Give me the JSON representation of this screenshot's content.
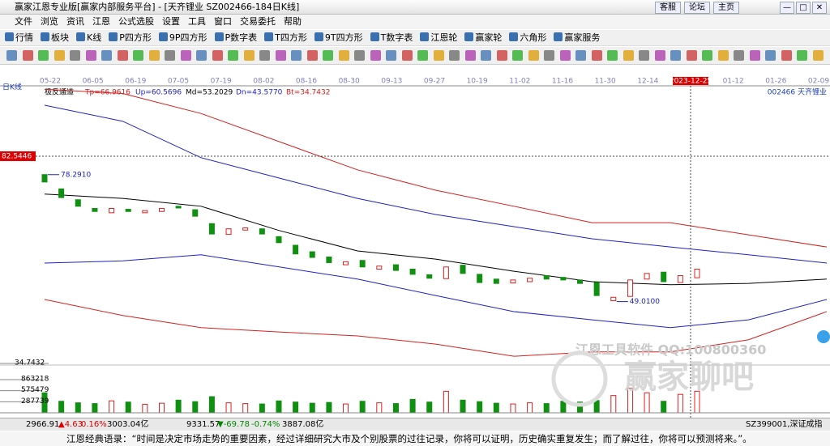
{
  "window": {
    "title": "赢家江恩专业版[赢家内部服务平台] - [天齐锂业  SZ002466-184日K线]",
    "buttons": [
      "客服",
      "论坛",
      "主页"
    ]
  },
  "menu": [
    "文件",
    "浏览",
    "资讯",
    "江恩",
    "公式选股",
    "设置",
    "工具",
    "窗口",
    "交易委托",
    "帮助"
  ],
  "toolbar": [
    "行情",
    "板块",
    "K线",
    "P四方形",
    "9P四方形",
    "P数字表",
    "T四方形",
    "9T四方形",
    "T数字表",
    "江恩轮",
    "赢家轮",
    "六角形",
    "赢家服务"
  ],
  "chart_data": {
    "type": "candlestick",
    "period_label": "日K线",
    "indicator": "极反通道",
    "indicator_params": [
      "Tp=66.9616",
      "Up=60.5696",
      "Md=53.2029",
      "Dn=43.5770",
      "Bt=34.7432"
    ],
    "stock": "002466  天齐锂业",
    "dates": [
      "05-22",
      "06-05",
      "06-19",
      "07-05",
      "07-19",
      "08-02",
      "08-16",
      "08-30",
      "09-13",
      "09-27",
      "10-19",
      "11-02",
      "11-16",
      "11-30",
      "12-14",
      "2023-12-25",
      "01-12",
      "01-26",
      "02-09"
    ],
    "highlight_date": "2023-12-25",
    "ylim": [
      34.7432,
      98.41
    ],
    "open": [
      78.3,
      75,
      72.5,
      70.5,
      69.5,
      70.3,
      69.5,
      69.8,
      71,
      70.2,
      67,
      64.5,
      65.5,
      65.8,
      64,
      62,
      60.5,
      59.3,
      57.5,
      58.5,
      56.5,
      57.5,
      56.5,
      55.2,
      54.3,
      57.4,
      55.3,
      54.2,
      53.3,
      53.6,
      55,
      54.6,
      54,
      53.4,
      49.2,
      50.2,
      54.2,
      55.8,
      53.4,
      54.5
    ],
    "close": [
      76.6,
      73,
      71,
      69.8,
      70.5,
      69.8,
      70,
      70.5,
      70.6,
      68.7,
      64.6,
      65.8,
      66,
      64.6,
      62.6,
      60,
      59.2,
      58,
      58.2,
      57,
      57.2,
      56.2,
      55.3,
      54.4,
      57,
      55.5,
      53.4,
      53.2,
      54,
      54.4,
      54.2,
      54,
      53.2,
      50.4,
      50,
      54,
      55.5,
      53.6,
      55,
      56.5
    ],
    "volume": [
      520000,
      300000,
      260000,
      240000,
      310000,
      280000,
      220000,
      250000,
      330000,
      290000,
      420000,
      260000,
      240000,
      230000,
      310000,
      280000,
      250000,
      270000,
      230000,
      300000,
      260000,
      240000,
      350000,
      280000,
      560000,
      330000,
      290000,
      250000,
      230000,
      260000,
      240000,
      300000,
      280000,
      320000,
      450000,
      640000,
      520000,
      300000,
      480000,
      560000
    ],
    "channels": [
      {
        "color": "#d62020",
        "values": [
          98.0,
          97.0,
          92.4,
          85.9,
          79.4,
          74.7,
          71.0,
          67.2,
          67.2,
          64.4,
          61.6
        ]
      },
      {
        "color": "#2020c8",
        "values": [
          94.3,
          90.6,
          82.2,
          77.5,
          72.8,
          69.1,
          66.3,
          63.5,
          61.6,
          59.8,
          57.9
        ]
      },
      {
        "color": "#000000",
        "values": [
          73.8,
          72.8,
          71.0,
          65.4,
          60.7,
          58.8,
          56.0,
          53.6,
          52.9,
          53.2,
          54.2
        ]
      },
      {
        "color": "#2020c8",
        "values": [
          57.9,
          58.4,
          59.8,
          57.0,
          54.2,
          50.4,
          46.7,
          44.8,
          43.0,
          44.8,
          49.5
        ]
      },
      {
        "color": "#d62020",
        "values": [
          49.5,
          45.8,
          43.0,
          42.0,
          41.1,
          39.2,
          36.4,
          37.4,
          37.4,
          40.2,
          46.7
        ]
      }
    ],
    "cursor_price": {
      "value": 82.5446,
      "label": "82.5446"
    },
    "high_label": {
      "value": 78.291,
      "label": "78.2910"
    },
    "low_label": {
      "value": 49.01,
      "label": "49.0100"
    },
    "bottom_label": {
      "value": 34.7432,
      "label": "34.7432"
    },
    "volume_ylim": [
      0,
      863218
    ],
    "volume_ticks": [
      863218,
      575479,
      287739
    ]
  },
  "watermark": [
    "江恩工具软件  QQ:100800360",
    "赢家聊吧"
  ],
  "status": [
    "2966.91",
    "▲4.63",
    "0.16%",
    "3003.04亿",
    "9331.57",
    "▼-69.78",
    "-0.74%",
    "3887.08亿",
    "SZ399001,深证成指"
  ],
  "quote": "江恩经典语录：“时间是决定市场走势的重要因素，经过详细研究大市及个别股票的过往记录，你将可以证明，历史确实重复发生；而了解过往，你将可以预测将来。”。"
}
